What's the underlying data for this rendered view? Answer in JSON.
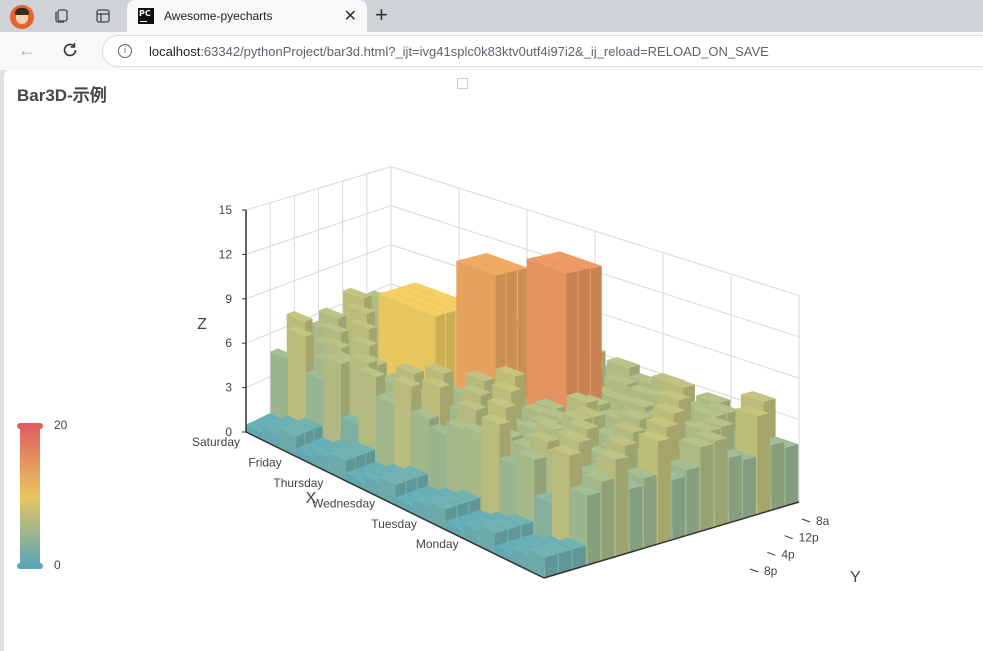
{
  "browser": {
    "tab_title": "Awesome-pyecharts",
    "url_host": "localhost",
    "url_rest": ":63342/pythonProject/bar3d.html?_ijt=ivg41splc0k83ktv0utf4i97i2&_ij_reload=RELOAD_ON_SAVE"
  },
  "chart_data": {
    "type": "bar3d",
    "title": "Bar3D-示例",
    "xaxis": {
      "name": "X",
      "categories": [
        "Saturday",
        "Friday",
        "Thursday",
        "Wednesday",
        "Tuesday",
        "Monday"
      ]
    },
    "yaxis": {
      "name": "Y",
      "categories": [
        "8a",
        "12p",
        "4p",
        "8p"
      ]
    },
    "zaxis": {
      "name": "Z",
      "ticks": [
        0,
        3,
        6,
        9,
        12,
        15
      ],
      "range": [
        0,
        15
      ]
    },
    "visual_map": {
      "min": 0,
      "max": 20,
      "colors": [
        "#5aa6b5",
        "#e8c65f",
        "#e06060"
      ]
    },
    "grid": true,
    "legend_placement": "top-center"
  }
}
